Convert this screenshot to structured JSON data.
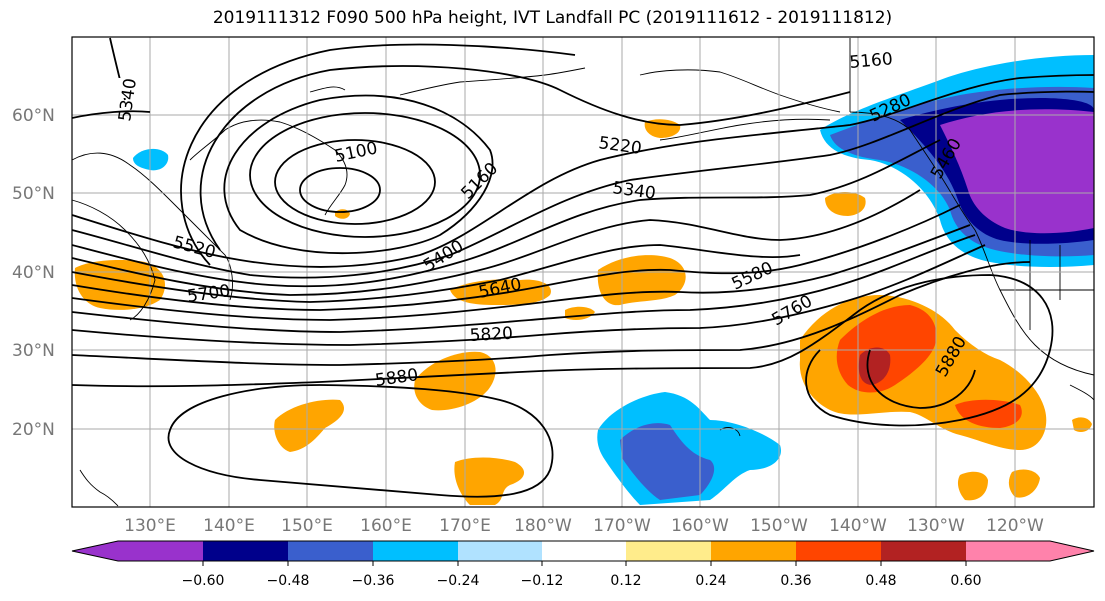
{
  "title": "2019111312 F090 500 hPa height, IVT Landfall PC (2019111612 - 2019111812)",
  "map": {
    "lat_labels": [
      "60°N",
      "50°N",
      "40°N",
      "30°N",
      "20°N"
    ],
    "lon_labels": [
      "130°E",
      "140°E",
      "150°E",
      "160°E",
      "170°E",
      "180°W",
      "170°W",
      "160°W",
      "150°W",
      "140°W",
      "130°W",
      "120°W"
    ],
    "contour_labels": [
      "5340",
      "5100",
      "5160",
      "5220",
      "5340",
      "5160",
      "5280",
      "5460",
      "5520",
      "5700",
      "5400",
      "5640",
      "5580",
      "5760",
      "5820",
      "5880",
      "5880"
    ]
  },
  "colorbar": {
    "ticks": [
      "−0.60",
      "−0.48",
      "−0.36",
      "−0.24",
      "−0.12",
      "0.12",
      "0.24",
      "0.36",
      "0.48",
      "0.60"
    ],
    "colors": [
      "#9932cc",
      "#00008b",
      "#3a5fcd",
      "#00bfff",
      "#b0e2ff",
      "#ffffff",
      "#ffec8b",
      "#ffa500",
      "#ff4500",
      "#b22222",
      "#ff82ab"
    ]
  },
  "colors": {
    "land_outline": "#000000",
    "grid": "#aaaaaa",
    "contour": "#000000"
  }
}
